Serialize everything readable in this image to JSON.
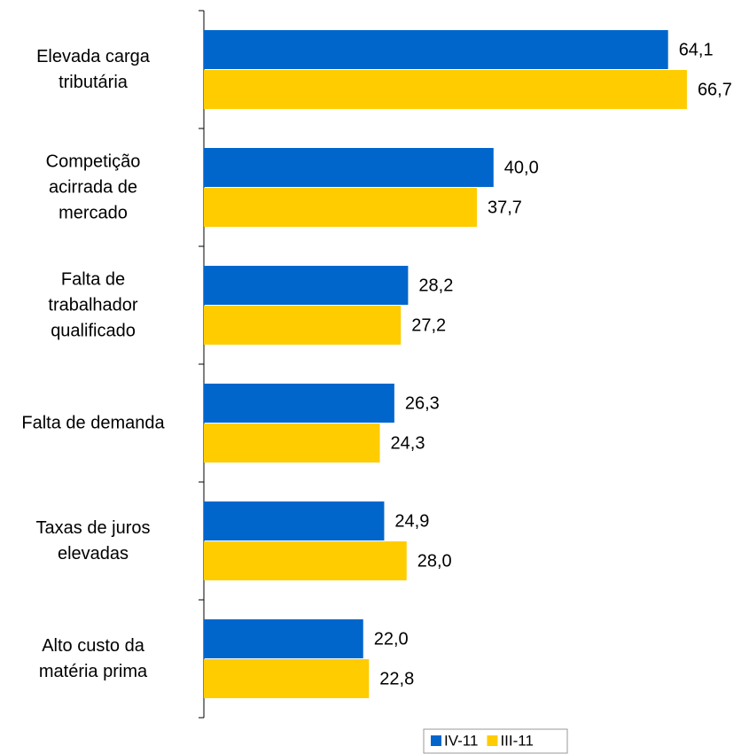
{
  "chart_data": {
    "type": "bar",
    "orientation": "horizontal",
    "categories": [
      "Elevada carga\ntributária",
      "Competição\nacirrada de\nmercado",
      "Falta de\ntrabalhador\nqualificado",
      "Falta de demanda",
      "Taxas de juros\nelevadas",
      "Alto custo da\nmatéria prima"
    ],
    "series": [
      {
        "name": "IV-11",
        "color": "#0066cc",
        "values": [
          64.1,
          40.0,
          28.2,
          26.3,
          24.9,
          22.0
        ],
        "value_labels": [
          "64,1",
          "40,0",
          "28,2",
          "26,3",
          "24,9",
          "22,0"
        ]
      },
      {
        "name": "III-11",
        "color": "#ffcc00",
        "values": [
          66.7,
          37.7,
          27.2,
          24.3,
          28.0,
          22.8
        ],
        "value_labels": [
          "66,7",
          "37,7",
          "27,2",
          "24,3",
          "28,0",
          "22,8"
        ]
      }
    ],
    "legend": "bottom"
  }
}
